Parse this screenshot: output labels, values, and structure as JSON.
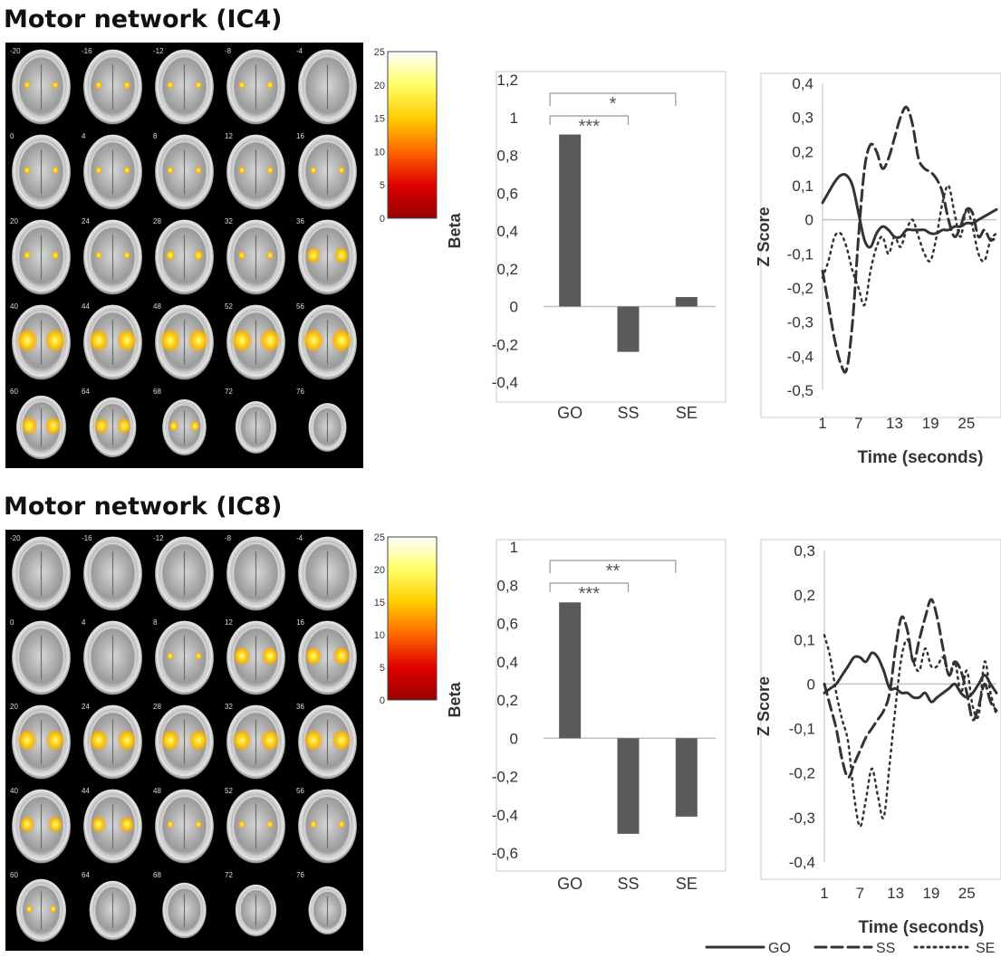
{
  "panels": [
    {
      "title": "Motor network (IC4)",
      "slices": {
        "labels": [
          "-20",
          "-16",
          "-12",
          "-8",
          "-4",
          "0",
          "4",
          "8",
          "12",
          "16",
          "20",
          "24",
          "28",
          "32",
          "36",
          "40",
          "44",
          "48",
          "52",
          "56",
          "60",
          "64",
          "68",
          "72",
          "76"
        ],
        "activation": [
          [
            0.2,
            0.35,
            0.3,
            0.25,
            0.0
          ],
          [
            0.15,
            0.1,
            0.1,
            0.15,
            0.15
          ],
          [
            0.35,
            0.3,
            0.45,
            0.35,
            0.7
          ],
          [
            1.0,
            0.95,
            1.0,
            1.0,
            1.0
          ],
          [
            0.9,
            0.85,
            0.6,
            0.0,
            0.0
          ]
        ]
      },
      "colorbar": {
        "ticks": [
          "25",
          "20",
          "15",
          "10",
          "5",
          "0"
        ],
        "colors": [
          "#ffffff",
          "#ffff66",
          "#ffcc00",
          "#ff6600",
          "#e00000",
          "#990000"
        ]
      },
      "bar_annotations": [
        {
          "from": 0,
          "to": 2,
          "label": "*"
        },
        {
          "from": 0,
          "to": 1,
          "label": "***"
        }
      ],
      "ts_xticks": [
        "1",
        "7",
        "13",
        "19",
        "25"
      ],
      "ts_xlabel": "Time (seconds)"
    },
    {
      "title": "Motor network (IC8)",
      "slices": {
        "labels": [
          "-20",
          "-16",
          "-12",
          "-8",
          "-4",
          "0",
          "4",
          "8",
          "12",
          "16",
          "20",
          "24",
          "28",
          "32",
          "36",
          "40",
          "44",
          "48",
          "52",
          "56",
          "60",
          "64",
          "68",
          "72",
          "76"
        ],
        "activation": [
          [
            0.0,
            0.0,
            0.0,
            0.0,
            0.0
          ],
          [
            0.0,
            0.0,
            0.15,
            0.8,
            0.8
          ],
          [
            0.9,
            0.9,
            0.9,
            0.9,
            0.9
          ],
          [
            0.7,
            0.7,
            0.3,
            0.2,
            0.25
          ],
          [
            0.1,
            0.0,
            0.0,
            0.0,
            0.0
          ]
        ]
      },
      "colorbar": {
        "ticks": [
          "25",
          "20",
          "15",
          "10",
          "5",
          "0"
        ],
        "colors": [
          "#ffffff",
          "#ffff66",
          "#ffcc00",
          "#ff6600",
          "#e00000",
          "#990000"
        ]
      },
      "bar_annotations": [
        {
          "from": 0,
          "to": 2,
          "label": "**"
        },
        {
          "from": 0,
          "to": 1,
          "label": "***"
        }
      ],
      "ts_xticks": [
        "1",
        "7",
        "13",
        "19",
        "25"
      ],
      "ts_xlabel": "Time (seconds)"
    }
  ],
  "legend": {
    "labels": [
      "GO",
      "SS",
      "SE"
    ],
    "dash": [
      "",
      "12 6",
      "2 5"
    ]
  },
  "chart_data": [
    {
      "type": "bar",
      "categories": [
        "GO",
        "SS",
        "SE"
      ],
      "values": [
        0.91,
        -0.24,
        0.05
      ],
      "ylabel": "Beta",
      "ylim": [
        -0.4,
        1.2
      ],
      "yticks": [
        "1,2",
        "1",
        "0,8",
        "0,6",
        "0,4",
        "0,2",
        "0",
        "-0,2",
        "-0,4"
      ],
      "bar_color": "#5a5a5a"
    },
    {
      "type": "line",
      "x": [
        1,
        2,
        3,
        4,
        5,
        6,
        7,
        8,
        9,
        10,
        11,
        12,
        13,
        14,
        15,
        16,
        17,
        18,
        19,
        20,
        21,
        22,
        23,
        24,
        25,
        26,
        27,
        28,
        29,
        30
      ],
      "series": [
        {
          "name": "GO",
          "values": [
            0.05,
            0.08,
            0.11,
            0.13,
            0.13,
            0.1,
            0.02,
            -0.06,
            -0.08,
            -0.04,
            -0.02,
            -0.03,
            -0.05,
            -0.05,
            -0.03,
            -0.03,
            -0.03,
            -0.03,
            -0.04,
            -0.04,
            -0.03,
            -0.03,
            -0.02,
            -0.02,
            -0.01,
            -0.01,
            0.0,
            0.01,
            0.02,
            0.03
          ]
        },
        {
          "name": "SS",
          "values": [
            -0.15,
            -0.25,
            -0.35,
            -0.42,
            -0.44,
            -0.3,
            -0.05,
            0.15,
            0.22,
            0.2,
            0.15,
            0.18,
            0.24,
            0.3,
            0.33,
            0.28,
            0.18,
            0.15,
            0.14,
            0.12,
            0.08,
            0.0,
            -0.05,
            -0.02,
            0.03,
            0.02,
            -0.05,
            -0.03,
            -0.06,
            -0.05
          ]
        },
        {
          "name": "SE",
          "values": [
            -0.17,
            -0.12,
            -0.05,
            -0.04,
            -0.08,
            -0.15,
            -0.2,
            -0.25,
            -0.15,
            -0.08,
            -0.05,
            -0.1,
            -0.05,
            -0.08,
            -0.03,
            0.0,
            -0.05,
            -0.1,
            -0.12,
            -0.05,
            0.05,
            0.1,
            0.02,
            -0.05,
            0.03,
            -0.02,
            -0.1,
            -0.12,
            -0.06,
            -0.04
          ]
        }
      ],
      "ylabel": "Z Score",
      "xlabel": "Time (seconds)",
      "ylim": [
        -0.5,
        0.4
      ],
      "yticks": [
        "0,4",
        "0,3",
        "0,2",
        "0,1",
        "0",
        "-0,1",
        "-0,2",
        "-0,3",
        "-0,4",
        "-0,5"
      ],
      "xticks": [
        "1",
        "7",
        "13",
        "19",
        "25"
      ]
    },
    {
      "type": "bar",
      "categories": [
        "GO",
        "SS",
        "SE"
      ],
      "values": [
        0.71,
        -0.5,
        -0.41
      ],
      "ylabel": "Beta",
      "ylim": [
        -0.6,
        1.0
      ],
      "yticks": [
        "1",
        "0,8",
        "0,6",
        "0,4",
        "0,2",
        "0",
        "-0,2",
        "-0,4",
        "-0,6"
      ],
      "bar_color": "#5a5a5a"
    },
    {
      "type": "line",
      "x": [
        1,
        2,
        3,
        4,
        5,
        6,
        7,
        8,
        9,
        10,
        11,
        12,
        13,
        14,
        15,
        16,
        17,
        18,
        19,
        20,
        21,
        22,
        23,
        24,
        25,
        26,
        27,
        28,
        29,
        30
      ],
      "series": [
        {
          "name": "GO",
          "values": [
            -0.02,
            -0.01,
            0.0,
            0.02,
            0.04,
            0.06,
            0.06,
            0.05,
            0.07,
            0.06,
            0.03,
            -0.01,
            -0.01,
            -0.02,
            -0.02,
            -0.03,
            -0.03,
            -0.02,
            -0.04,
            -0.03,
            -0.02,
            -0.01,
            0.0,
            -0.02,
            -0.03,
            -0.02,
            0.0,
            0.02,
            0.0,
            -0.02
          ]
        },
        {
          "name": "SS",
          "values": [
            0.0,
            -0.05,
            -0.1,
            -0.17,
            -0.21,
            -0.18,
            -0.15,
            -0.12,
            -0.1,
            -0.08,
            -0.06,
            -0.02,
            0.08,
            0.15,
            0.12,
            0.05,
            0.1,
            0.15,
            0.19,
            0.15,
            0.08,
            0.02,
            0.05,
            0.03,
            -0.02,
            -0.08,
            -0.05,
            0.0,
            -0.04,
            -0.06
          ]
        },
        {
          "name": "SE",
          "values": [
            0.11,
            0.06,
            -0.02,
            -0.08,
            -0.13,
            -0.25,
            -0.32,
            -0.26,
            -0.19,
            -0.25,
            -0.3,
            -0.18,
            -0.05,
            0.06,
            0.1,
            0.05,
            0.03,
            0.08,
            0.04,
            0.04,
            0.06,
            0.02,
            0.05,
            -0.02,
            0.03,
            -0.05,
            -0.07,
            0.05,
            -0.02,
            -0.07
          ]
        }
      ],
      "ylabel": "Z Score",
      "xlabel": "Time (seconds)",
      "ylim": [
        -0.4,
        0.3
      ],
      "yticks": [
        "0,3",
        "0,2",
        "0,1",
        "0",
        "-0,1",
        "-0,2",
        "-0,3",
        "-0,4"
      ],
      "xticks": [
        "1",
        "7",
        "13",
        "19",
        "25"
      ]
    }
  ]
}
